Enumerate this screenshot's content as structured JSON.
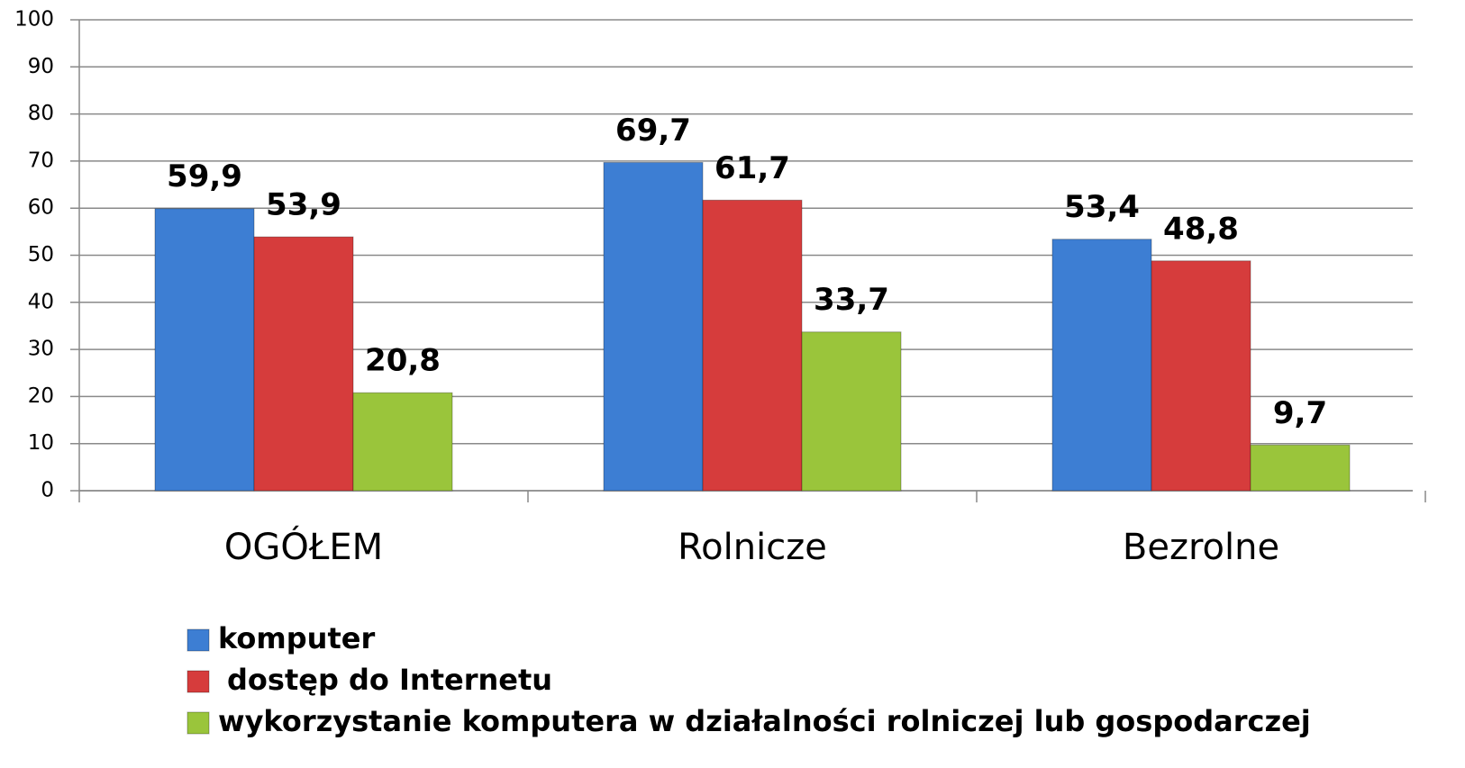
{
  "chart_data": {
    "type": "bar",
    "categories": [
      "OGÓŁEM",
      "Rolnicze",
      "Bezrolne"
    ],
    "series": [
      {
        "name": "komputer",
        "color": "#3d7ed3",
        "values": [
          59.9,
          69.7,
          53.4
        ],
        "value_labels": [
          "59,9",
          "69,7",
          "53,4"
        ]
      },
      {
        "name": "dostęp do Internetu",
        "color": "#d63c3c",
        "values": [
          53.9,
          61.7,
          48.8
        ],
        "value_labels": [
          "53,9",
          "61,7",
          "48,8"
        ]
      },
      {
        "name": "wykorzystanie komputera w działalności rolniczej lub gospodarczej",
        "color": "#9ac53b",
        "values": [
          20.8,
          33.7,
          9.7
        ],
        "value_labels": [
          "20,8",
          "33,7",
          "9,7"
        ]
      }
    ],
    "ylim": [
      0,
      100
    ],
    "yticks": [
      0,
      10,
      20,
      30,
      40,
      50,
      60,
      70,
      80,
      90,
      100
    ],
    "grid": true,
    "legend": "bottom"
  }
}
